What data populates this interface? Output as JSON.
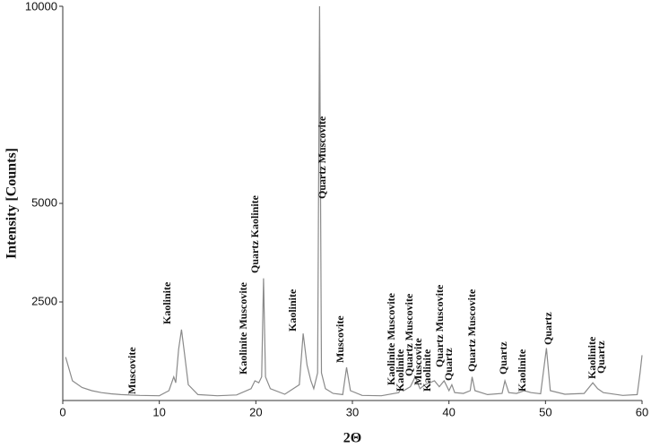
{
  "chart_data": {
    "type": "line",
    "xlabel": "2Θ",
    "ylabel": "Intensity [Counts]",
    "x": [
      0.3,
      1,
      2,
      3,
      4,
      5,
      6,
      8,
      10,
      11,
      11.5,
      11.7,
      12,
      12.3,
      12.6,
      13,
      14,
      16,
      18,
      19.5,
      19.9,
      20.3,
      20.6,
      20.8,
      21,
      21.5,
      23,
      24.5,
      24.9,
      25.3,
      25.7,
      26,
      26.4,
      26.6,
      26.8,
      27.2,
      28,
      29,
      29.4,
      29.8,
      31,
      33,
      34.8,
      35,
      35.3,
      36,
      36.5,
      37,
      37.5,
      38,
      38.5,
      39,
      39.5,
      40,
      40.3,
      40.6,
      41.5,
      42.2,
      42.4,
      42.7,
      44,
      45.5,
      45.8,
      46.2,
      47,
      47.8,
      48.5,
      49.5,
      50.1,
      50.5,
      52,
      54,
      54.9,
      55.4,
      56,
      58,
      59.5,
      59.8,
      60
    ],
    "series": [
      {
        "color": "#8a8a8a",
        "values": [
          1100,
          500,
          330,
          250,
          200,
          170,
          150,
          130,
          120,
          250,
          600,
          450,
          1300,
          1800,
          1200,
          400,
          150,
          120,
          140,
          300,
          500,
          450,
          600,
          3100,
          600,
          300,
          160,
          400,
          1700,
          900,
          500,
          300,
          700,
          10000,
          700,
          300,
          180,
          150,
          840,
          250,
          130,
          120,
          200,
          300,
          250,
          350,
          600,
          300,
          400,
          450,
          500,
          350,
          500,
          250,
          400,
          200,
          180,
          250,
          600,
          250,
          150,
          180,
          500,
          200,
          180,
          250,
          200,
          170,
          1330,
          250,
          160,
          180,
          450,
          300,
          200,
          130,
          150,
          700,
          1150
        ]
      }
    ],
    "xlim": [
      0,
      60
    ],
    "xticks": [
      0,
      10,
      20,
      30,
      40,
      50,
      60
    ],
    "ylim": [
      0,
      10000
    ],
    "yticks": [
      2500,
      5000,
      10000
    ],
    "annotations": [
      "Muscovite",
      "Kaolinite",
      "Kaolinite Muscovite",
      "Quartz Kaolinite",
      "Kaolinite",
      "Quartz Muscovite",
      "Muscovite",
      "Kaolinite Muscovite",
      "Kaolinite",
      "Quartz Muscovite",
      "Muscovite",
      "Kaolinite",
      "Quartz Muscovite",
      "Quartz",
      "Quartz Muscovite",
      "Quartz",
      "Kaolinite",
      "Quartz",
      "Kaolinite",
      "Quartz"
    ]
  }
}
